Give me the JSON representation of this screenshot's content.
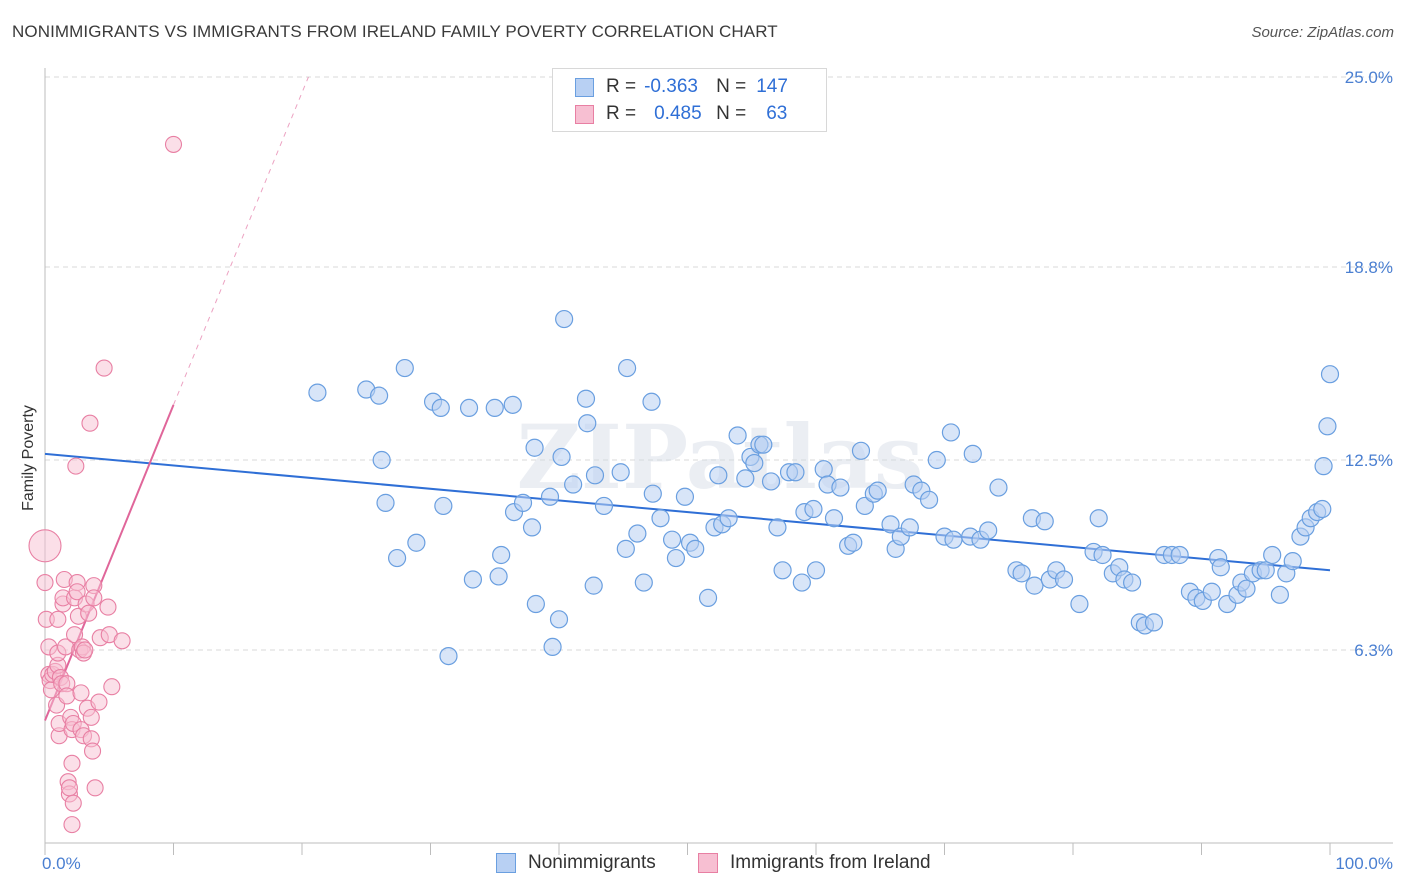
{
  "title": "NONIMMIGRANTS VS IMMIGRANTS FROM IRELAND FAMILY POVERTY CORRELATION CHART",
  "source": "Source: ZipAtlas.com",
  "watermark": "ZIPatlas",
  "legend": {
    "rows": [
      {
        "r_label": "R =",
        "r_value": "-0.363",
        "n_label": "N =",
        "n_value": "147"
      },
      {
        "r_label": "R =",
        "r_value": "0.485",
        "n_label": "N =",
        "n_value": "63"
      }
    ]
  },
  "bottom_legend": {
    "series1": "Nonimmigrants",
    "series2": "Immigrants from Ireland"
  },
  "colors": {
    "blue": "#6a9fe0",
    "blue_fill": "#b8d0f3",
    "pink": "#e87fa3",
    "pink_fill": "#f7bfd2",
    "blue_line": "#2f6fd6",
    "pink_line": "#e0669a",
    "tick_text": "#4a7fd1"
  },
  "chart_data": {
    "type": "scatter",
    "title": "NONIMMIGRANTS VS IMMIGRANTS FROM IRELAND FAMILY POVERTY CORRELATION CHART",
    "xlabel": "",
    "ylabel": "Family Poverty",
    "xlim": [
      0,
      100
    ],
    "ylim": [
      0,
      25.0
    ],
    "x_tick_labels": [
      "0.0%",
      "100.0%"
    ],
    "y_ticks": [
      6.3,
      12.5,
      18.8,
      25.0
    ],
    "y_tick_labels": [
      "6.3%",
      "12.5%",
      "18.8%",
      "25.0%"
    ],
    "series": [
      {
        "name": "Nonimmigrants",
        "R": -0.363,
        "N": 147,
        "trend": {
          "x": [
            0,
            100
          ],
          "y": [
            12.7,
            8.9
          ]
        },
        "points": [
          [
            21.2,
            14.7
          ],
          [
            25.0,
            14.8
          ],
          [
            26.0,
            14.6
          ],
          [
            26.2,
            12.5
          ],
          [
            26.5,
            11.1
          ],
          [
            27.4,
            9.3
          ],
          [
            28.0,
            15.5
          ],
          [
            28.9,
            9.8
          ],
          [
            30.2,
            14.4
          ],
          [
            30.8,
            14.2
          ],
          [
            31.0,
            11.0
          ],
          [
            31.4,
            6.1
          ],
          [
            33.0,
            14.2
          ],
          [
            33.3,
            8.6
          ],
          [
            35.0,
            14.2
          ],
          [
            35.3,
            8.7
          ],
          [
            35.5,
            9.4
          ],
          [
            36.4,
            14.3
          ],
          [
            36.5,
            10.8
          ],
          [
            37.2,
            11.1
          ],
          [
            37.9,
            10.3
          ],
          [
            38.1,
            12.9
          ],
          [
            38.2,
            7.8
          ],
          [
            39.3,
            11.3
          ],
          [
            39.5,
            6.4
          ],
          [
            40.0,
            7.3
          ],
          [
            40.2,
            12.6
          ],
          [
            40.4,
            17.1
          ],
          [
            41.1,
            11.7
          ],
          [
            42.1,
            14.5
          ],
          [
            42.2,
            13.7
          ],
          [
            42.7,
            8.4
          ],
          [
            42.8,
            12.0
          ],
          [
            43.5,
            11.0
          ],
          [
            44.8,
            12.1
          ],
          [
            45.2,
            9.6
          ],
          [
            45.3,
            15.5
          ],
          [
            46.1,
            10.1
          ],
          [
            46.6,
            8.5
          ],
          [
            47.2,
            14.4
          ],
          [
            47.3,
            11.4
          ],
          [
            47.9,
            10.6
          ],
          [
            48.8,
            9.9
          ],
          [
            49.1,
            9.3
          ],
          [
            49.8,
            11.3
          ],
          [
            50.2,
            9.8
          ],
          [
            50.6,
            9.6
          ],
          [
            51.6,
            8.0
          ],
          [
            52.1,
            10.3
          ],
          [
            52.4,
            12.0
          ],
          [
            52.7,
            10.4
          ],
          [
            53.2,
            10.6
          ],
          [
            53.9,
            13.3
          ],
          [
            54.5,
            11.9
          ],
          [
            54.9,
            12.6
          ],
          [
            55.2,
            12.4
          ],
          [
            55.6,
            13.0
          ],
          [
            55.9,
            13.0
          ],
          [
            56.5,
            11.8
          ],
          [
            57.0,
            10.3
          ],
          [
            57.4,
            8.9
          ],
          [
            57.9,
            12.1
          ],
          [
            58.4,
            12.1
          ],
          [
            58.9,
            8.5
          ],
          [
            59.1,
            10.8
          ],
          [
            59.8,
            10.9
          ],
          [
            60.0,
            8.9
          ],
          [
            60.6,
            12.2
          ],
          [
            60.9,
            11.7
          ],
          [
            61.4,
            10.6
          ],
          [
            61.9,
            11.6
          ],
          [
            62.5,
            9.7
          ],
          [
            62.9,
            9.8
          ],
          [
            63.5,
            12.8
          ],
          [
            63.8,
            11.0
          ],
          [
            64.5,
            11.4
          ],
          [
            64.8,
            11.5
          ],
          [
            65.8,
            10.4
          ],
          [
            66.2,
            9.6
          ],
          [
            66.6,
            10.0
          ],
          [
            67.3,
            10.3
          ],
          [
            67.6,
            11.7
          ],
          [
            68.2,
            11.5
          ],
          [
            68.8,
            11.2
          ],
          [
            69.4,
            12.5
          ],
          [
            70.0,
            10.0
          ],
          [
            70.5,
            13.4
          ],
          [
            70.7,
            9.9
          ],
          [
            72.0,
            10.0
          ],
          [
            72.2,
            12.7
          ],
          [
            72.8,
            9.9
          ],
          [
            73.4,
            10.2
          ],
          [
            74.2,
            11.6
          ],
          [
            75.6,
            8.9
          ],
          [
            76.0,
            8.8
          ],
          [
            76.8,
            10.6
          ],
          [
            77.0,
            8.4
          ],
          [
            77.8,
            10.5
          ],
          [
            78.2,
            8.6
          ],
          [
            78.7,
            8.9
          ],
          [
            79.3,
            8.6
          ],
          [
            80.5,
            7.8
          ],
          [
            81.6,
            9.5
          ],
          [
            82.0,
            10.6
          ],
          [
            82.3,
            9.4
          ],
          [
            83.1,
            8.8
          ],
          [
            83.6,
            9.0
          ],
          [
            84.0,
            8.6
          ],
          [
            84.6,
            8.5
          ],
          [
            85.2,
            7.2
          ],
          [
            85.6,
            7.1
          ],
          [
            86.3,
            7.2
          ],
          [
            87.1,
            9.4
          ],
          [
            87.7,
            9.4
          ],
          [
            88.3,
            9.4
          ],
          [
            89.1,
            8.2
          ],
          [
            89.6,
            8.0
          ],
          [
            90.1,
            7.9
          ],
          [
            90.8,
            8.2
          ],
          [
            91.3,
            9.3
          ],
          [
            91.5,
            9.0
          ],
          [
            92.0,
            7.8
          ],
          [
            92.8,
            8.1
          ],
          [
            93.1,
            8.5
          ],
          [
            93.5,
            8.3
          ],
          [
            94.0,
            8.8
          ],
          [
            94.6,
            8.9
          ],
          [
            95.0,
            8.9
          ],
          [
            95.5,
            9.4
          ],
          [
            96.1,
            8.1
          ],
          [
            96.6,
            8.8
          ],
          [
            97.1,
            9.2
          ],
          [
            97.7,
            10.0
          ],
          [
            98.1,
            10.3
          ],
          [
            98.5,
            10.6
          ],
          [
            99.0,
            10.8
          ],
          [
            99.4,
            10.9
          ],
          [
            99.5,
            12.3
          ],
          [
            99.8,
            13.6
          ],
          [
            100.0,
            15.3
          ]
        ]
      },
      {
        "name": "Immigrants from Ireland",
        "R": 0.485,
        "N": 63,
        "trend": {
          "x": [
            0,
            10
          ],
          "y": [
            4.0,
            14.3
          ]
        },
        "trend_dashed": {
          "x": [
            10,
            20.5
          ],
          "y": [
            14.3,
            25.0
          ]
        },
        "points": [
          [
            0.0,
            9.7
          ],
          [
            0.0,
            8.5
          ],
          [
            0.1,
            7.3
          ],
          [
            0.3,
            6.4
          ],
          [
            0.3,
            5.5
          ],
          [
            0.4,
            5.3
          ],
          [
            0.5,
            5.0
          ],
          [
            0.6,
            5.5
          ],
          [
            0.8,
            5.6
          ],
          [
            0.9,
            4.5
          ],
          [
            1.0,
            5.8
          ],
          [
            1.0,
            6.2
          ],
          [
            1.0,
            7.3
          ],
          [
            1.1,
            3.5
          ],
          [
            1.1,
            3.9
          ],
          [
            1.2,
            5.4
          ],
          [
            1.3,
            5.2
          ],
          [
            1.4,
            7.8
          ],
          [
            1.4,
            8.0
          ],
          [
            1.5,
            8.6
          ],
          [
            1.6,
            6.4
          ],
          [
            1.7,
            5.2
          ],
          [
            1.7,
            4.8
          ],
          [
            1.8,
            2.0
          ],
          [
            1.9,
            1.6
          ],
          [
            1.9,
            1.8
          ],
          [
            2.0,
            4.1
          ],
          [
            2.1,
            3.7
          ],
          [
            2.1,
            2.6
          ],
          [
            2.1,
            0.6
          ],
          [
            2.2,
            3.9
          ],
          [
            2.2,
            1.3
          ],
          [
            2.3,
            8.0
          ],
          [
            2.3,
            6.8
          ],
          [
            2.4,
            12.3
          ],
          [
            2.5,
            8.5
          ],
          [
            2.5,
            8.2
          ],
          [
            2.6,
            7.4
          ],
          [
            2.7,
            6.3
          ],
          [
            2.8,
            4.9
          ],
          [
            2.8,
            3.7
          ],
          [
            2.9,
            6.4
          ],
          [
            3.0,
            6.2
          ],
          [
            3.0,
            3.5
          ],
          [
            3.1,
            6.3
          ],
          [
            3.2,
            7.8
          ],
          [
            3.3,
            4.4
          ],
          [
            3.4,
            7.5
          ],
          [
            3.5,
            13.7
          ],
          [
            3.6,
            3.4
          ],
          [
            3.6,
            4.1
          ],
          [
            3.7,
            3.0
          ],
          [
            3.8,
            8.4
          ],
          [
            3.8,
            8.0
          ],
          [
            3.9,
            1.8
          ],
          [
            4.2,
            4.6
          ],
          [
            4.3,
            6.7
          ],
          [
            4.6,
            15.5
          ],
          [
            4.9,
            7.7
          ],
          [
            5.0,
            6.8
          ],
          [
            5.2,
            5.1
          ],
          [
            6.0,
            6.6
          ],
          [
            10.0,
            22.8
          ]
        ]
      }
    ]
  }
}
